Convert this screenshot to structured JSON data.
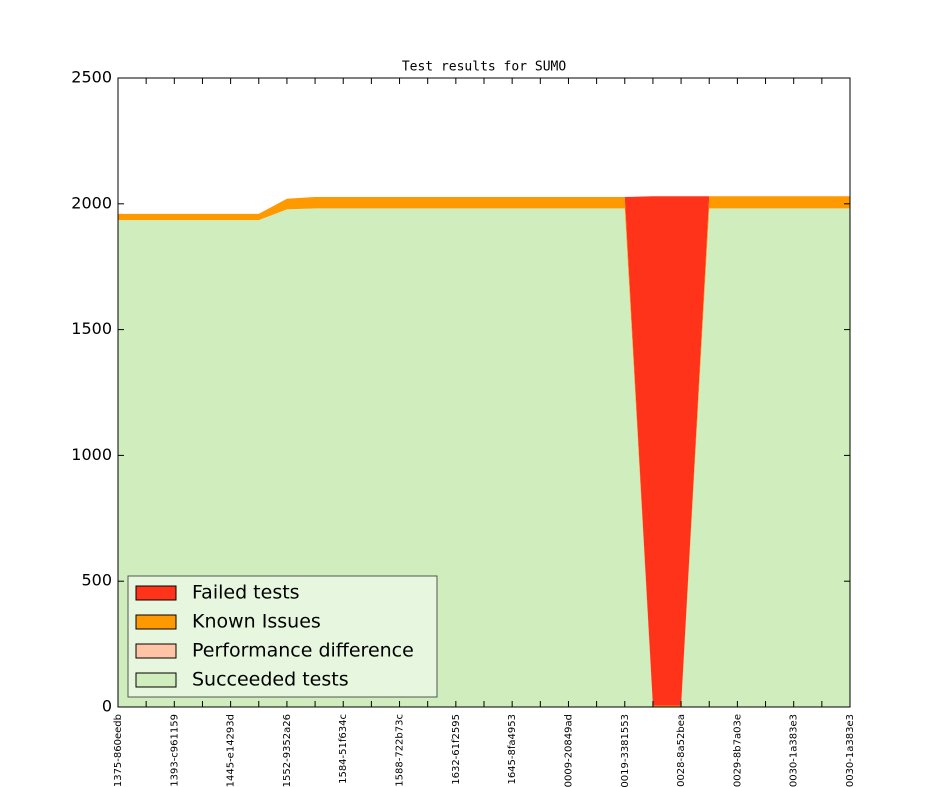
{
  "chart_data": {
    "type": "stacked_area",
    "title": "Test results for SUMO",
    "categories": [
      "1375-860eedb",
      null,
      "1393-c961159",
      null,
      "1445-e14293d",
      null,
      "1552-9352a26",
      null,
      "1584-51f634c",
      null,
      "1588-722b73c",
      null,
      "1632-61f2595",
      null,
      "1645-8fa4953",
      null,
      "0009-20849ad",
      null,
      "0019-3381553",
      null,
      "0028-8a52bea",
      null,
      "0029-8b7a03e",
      null,
      "0030-1a383e3",
      null,
      "0030-1a383e3"
    ],
    "series": [
      {
        "name": "Failed tests",
        "color": "#ff331a",
        "values": [
          0,
          0,
          0,
          0,
          0,
          0,
          0,
          0,
          0,
          0,
          0,
          0,
          0,
          0,
          0,
          0,
          0,
          0,
          0,
          2025,
          2025,
          0,
          0,
          0,
          0,
          0,
          0
        ]
      },
      {
        "name": "Known Issues",
        "color": "#ff9900",
        "values": [
          25,
          25,
          25,
          25,
          25,
          25,
          42,
          45,
          45,
          45,
          45,
          45,
          45,
          45,
          45,
          45,
          45,
          45,
          45,
          5,
          5,
          48,
          48,
          48,
          48,
          48,
          48
        ]
      },
      {
        "name": "Performance difference",
        "color": "#ffc4a5",
        "values": [
          0,
          0,
          0,
          0,
          0,
          0,
          0,
          0,
          0,
          0,
          0,
          0,
          0,
          0,
          0,
          0,
          0,
          0,
          0,
          0,
          0,
          0,
          0,
          0,
          0,
          0,
          0
        ]
      },
      {
        "name": "Succeeded tests",
        "color": "#cfedbd",
        "values": [
          1935,
          1935,
          1935,
          1935,
          1935,
          1935,
          1978,
          1982,
          1982,
          1982,
          1982,
          1982,
          1982,
          1982,
          1982,
          1982,
          1982,
          1982,
          1982,
          0,
          0,
          1982,
          1982,
          1982,
          1982,
          1982,
          1982
        ]
      }
    ],
    "ylim": [
      0,
      2500
    ],
    "yticks": [
      0,
      500,
      1000,
      1500,
      2000,
      2500
    ],
    "legend": "lower left"
  }
}
